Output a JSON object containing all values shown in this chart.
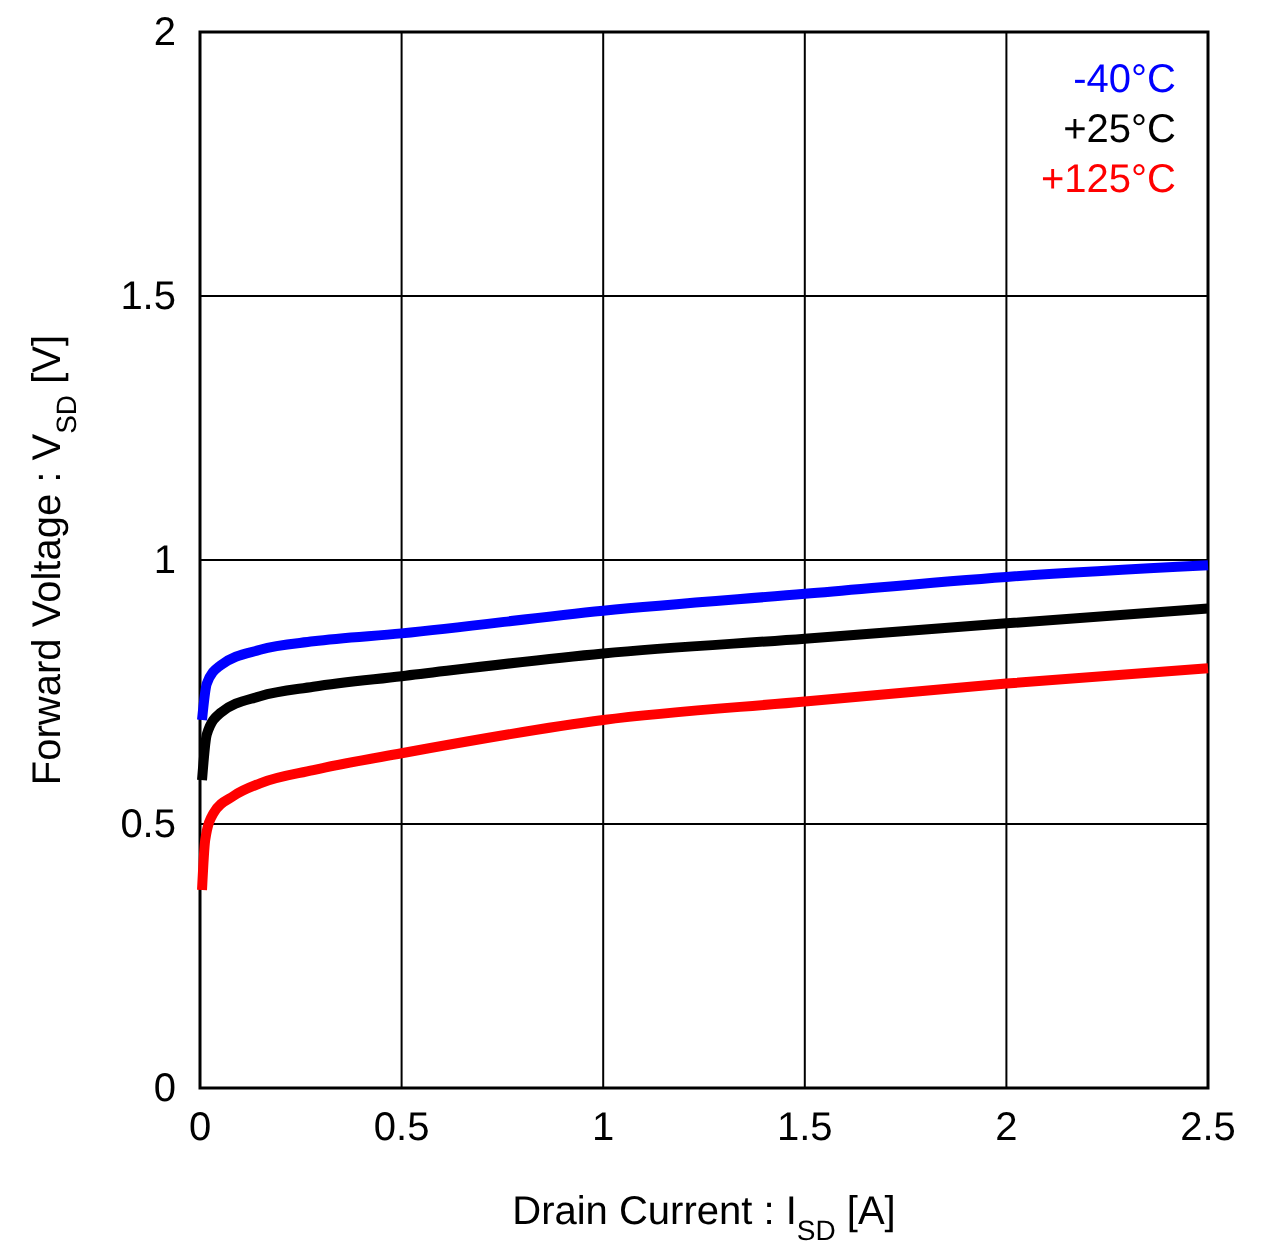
{
  "chart_data": {
    "type": "line",
    "xlabel": "Drain Current : I$_{SD}$ [A]",
    "ylabel": "Forward Voltage : V$_{SD}$ [V]",
    "xlim": [
      0,
      2.5
    ],
    "xticks": [
      0,
      0.5,
      1,
      1.5,
      2,
      2.5
    ],
    "ylim": [
      0,
      2
    ],
    "yticks": [
      0,
      0.5,
      1,
      1.5,
      2
    ],
    "grid": true,
    "legend": "top right",
    "marker": "none",
    "line_style": "solid",
    "series": [
      {
        "name": "-40°C",
        "color": "#0000ff",
        "x": [
          0.005,
          0.017,
          0.05,
          0.149,
          0.281,
          0.5,
          1,
          1.5,
          2,
          2.5
        ],
        "values": [
          0.697,
          0.766,
          0.8,
          0.83,
          0.846,
          0.861,
          0.904,
          0.936,
          0.968,
          0.99
        ]
      },
      {
        "name": "+25°C",
        "color": "#000000",
        "x": [
          0.005,
          0.017,
          0.05,
          0.149,
          0.281,
          0.5,
          1,
          1.5,
          2,
          2.5
        ],
        "values": [
          0.583,
          0.67,
          0.71,
          0.742,
          0.76,
          0.78,
          0.823,
          0.851,
          0.88,
          0.908
        ]
      },
      {
        "name": "+125°C",
        "color": "#ff0000",
        "x": [
          0.005,
          0.013,
          0.033,
          0.083,
          0.149,
          0.281,
          0.5,
          1,
          1.5,
          2,
          2.5
        ],
        "values": [
          0.375,
          0.47,
          0.52,
          0.553,
          0.577,
          0.602,
          0.634,
          0.697,
          0.732,
          0.766,
          0.795
        ]
      }
    ]
  }
}
